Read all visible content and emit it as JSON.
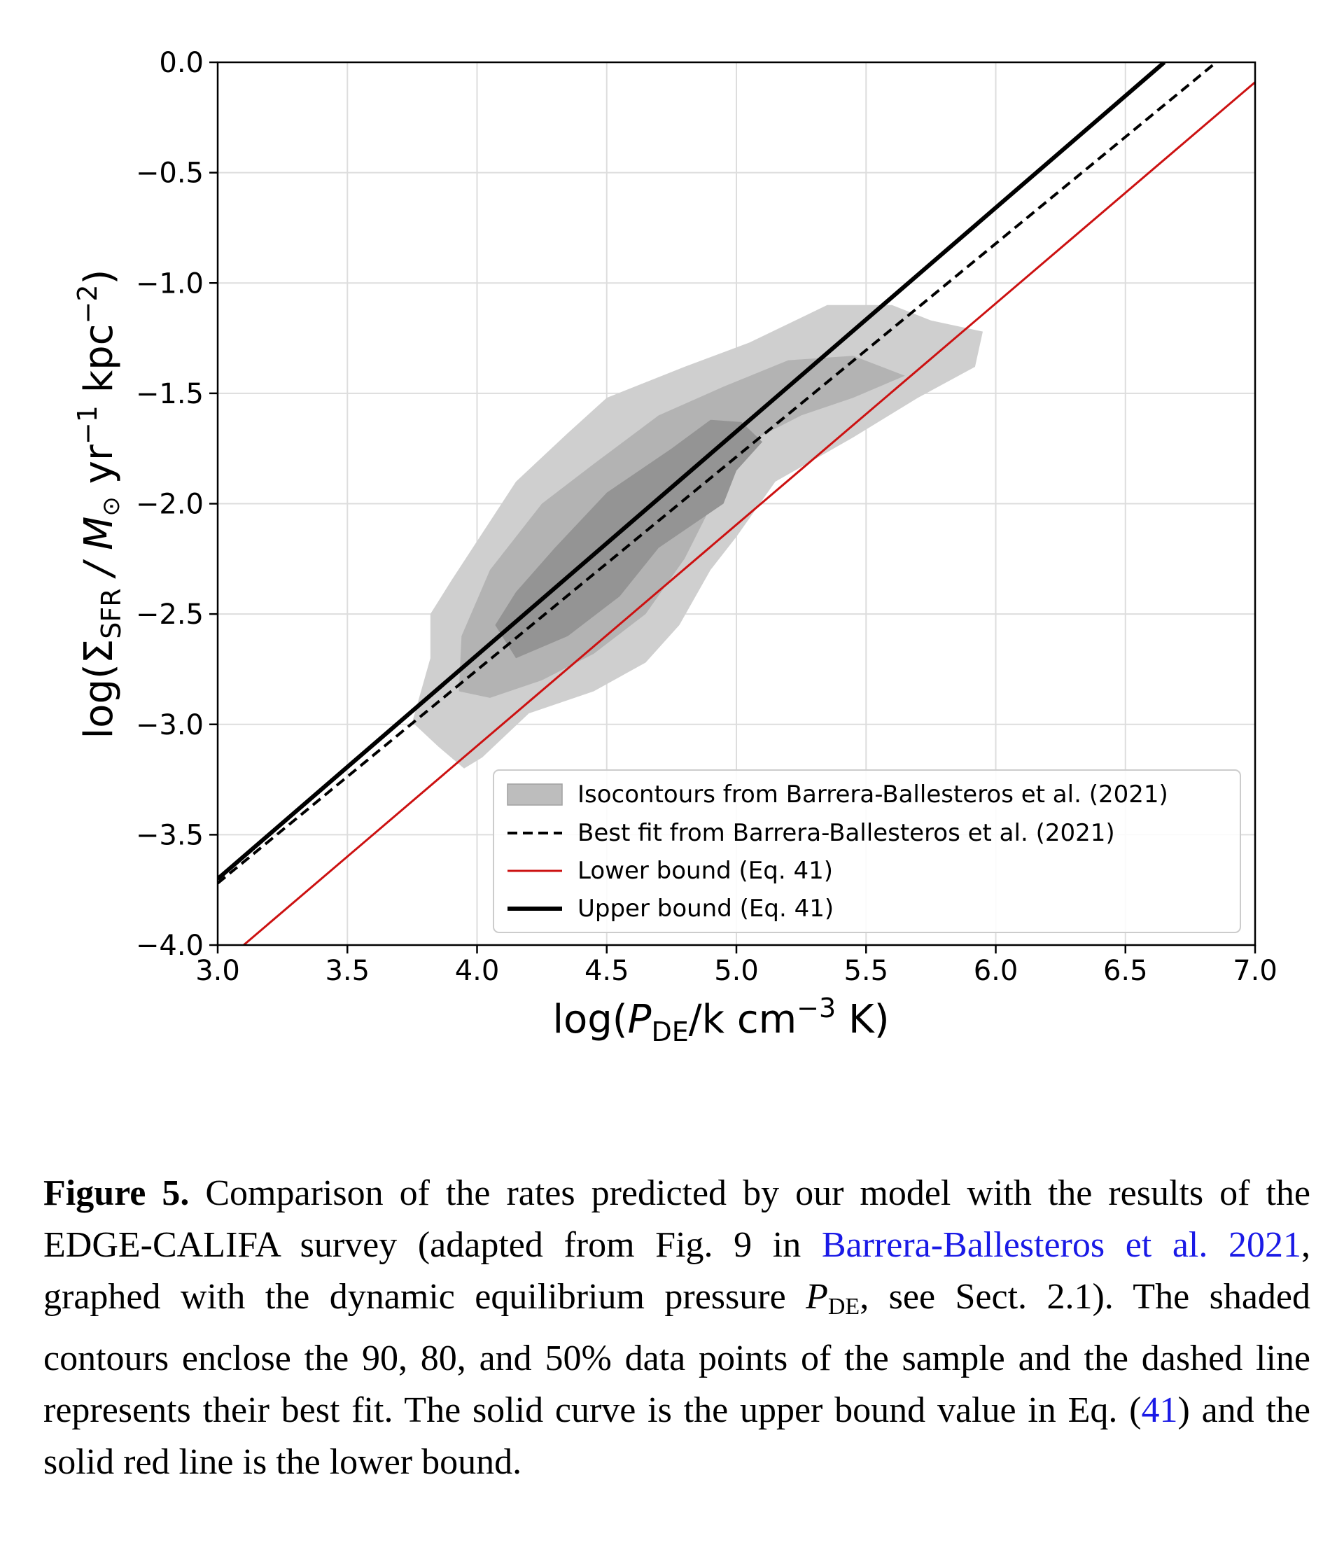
{
  "chart_data": {
    "type": "line",
    "xlabel": {
      "main": "log(",
      "var": "P",
      "sub": "DE",
      "rest": "/k cm",
      "sup": "−3",
      "end": " K)"
    },
    "ylabel": {
      "main": "log(Σ",
      "sub": "SFR",
      "rest": " / M",
      "sun": "⊙",
      "rest2": " yr",
      "sup1": "−1",
      "rest3": " kpc",
      "sup2": "−2",
      "end": ")"
    },
    "xlim": [
      3.0,
      7.0
    ],
    "ylim": [
      -4.0,
      0.0
    ],
    "x_ticks": [
      3.0,
      3.5,
      4.0,
      4.5,
      5.0,
      5.5,
      6.0,
      6.5,
      7.0
    ],
    "x_tick_labels": [
      "3.0",
      "3.5",
      "4.0",
      "4.5",
      "5.0",
      "5.5",
      "6.0",
      "6.5",
      "7.0"
    ],
    "y_ticks": [
      0.0,
      -0.5,
      -1.0,
      -1.5,
      -2.0,
      -2.5,
      -3.0,
      -3.5,
      -4.0
    ],
    "y_tick_labels": [
      "0.0",
      "−0.5",
      "−1.0",
      "−1.5",
      "−2.0",
      "−2.5",
      "−3.0",
      "−3.5",
      "−4.0"
    ],
    "grid": true,
    "legend_position": "lower-right",
    "series": [
      {
        "name": "Isocontours from Barrera-Ballesteros et al. (2021)",
        "kind": "contour",
        "color": "#bdbdbd",
        "levels": [
          {
            "percent": 90,
            "color": "#cfcfcf",
            "polygon": [
              [
                3.75,
                -2.99
              ],
              [
                3.82,
                -2.7
              ],
              [
                3.82,
                -2.5
              ],
              [
                3.9,
                -2.35
              ],
              [
                4.05,
                -2.08
              ],
              [
                4.15,
                -1.9
              ],
              [
                4.35,
                -1.68
              ],
              [
                4.5,
                -1.52
              ],
              [
                4.8,
                -1.38
              ],
              [
                5.05,
                -1.27
              ],
              [
                5.35,
                -1.1
              ],
              [
                5.6,
                -1.1
              ],
              [
                5.75,
                -1.17
              ],
              [
                5.95,
                -1.22
              ],
              [
                5.92,
                -1.38
              ],
              [
                5.7,
                -1.52
              ],
              [
                5.45,
                -1.7
              ],
              [
                5.3,
                -1.8
              ],
              [
                5.15,
                -1.9
              ],
              [
                5.0,
                -2.15
              ],
              [
                4.9,
                -2.3
              ],
              [
                4.78,
                -2.55
              ],
              [
                4.65,
                -2.72
              ],
              [
                4.45,
                -2.85
              ],
              [
                4.2,
                -2.95
              ],
              [
                4.02,
                -3.15
              ],
              [
                3.95,
                -3.2
              ],
              [
                3.85,
                -3.1
              ]
            ]
          },
          {
            "percent": 80,
            "color": "#b3b3b3",
            "polygon": [
              [
                3.93,
                -2.85
              ],
              [
                3.94,
                -2.6
              ],
              [
                4.05,
                -2.3
              ],
              [
                4.25,
                -2.0
              ],
              [
                4.45,
                -1.82
              ],
              [
                4.7,
                -1.6
              ],
              [
                4.95,
                -1.47
              ],
              [
                5.2,
                -1.35
              ],
              [
                5.45,
                -1.33
              ],
              [
                5.65,
                -1.42
              ],
              [
                5.45,
                -1.52
              ],
              [
                5.25,
                -1.6
              ],
              [
                5.05,
                -1.72
              ],
              [
                4.95,
                -1.9
              ],
              [
                4.8,
                -2.25
              ],
              [
                4.65,
                -2.5
              ],
              [
                4.45,
                -2.68
              ],
              [
                4.25,
                -2.8
              ],
              [
                4.05,
                -2.88
              ]
            ]
          },
          {
            "percent": 50,
            "color": "#949494",
            "polygon": [
              [
                4.07,
                -2.55
              ],
              [
                4.15,
                -2.4
              ],
              [
                4.3,
                -2.2
              ],
              [
                4.5,
                -1.95
              ],
              [
                4.75,
                -1.75
              ],
              [
                4.9,
                -1.62
              ],
              [
                5.02,
                -1.63
              ],
              [
                5.1,
                -1.72
              ],
              [
                5.0,
                -1.85
              ],
              [
                4.95,
                -2.0
              ],
              [
                4.7,
                -2.2
              ],
              [
                4.55,
                -2.42
              ],
              [
                4.35,
                -2.6
              ],
              [
                4.15,
                -2.7
              ]
            ]
          }
        ]
      },
      {
        "name": "Best fit from Barrera-Ballesteros et al. (2021)",
        "kind": "line",
        "style": "dashed",
        "color": "#000000",
        "x": [
          3.0,
          6.85
        ],
        "y": [
          -3.72,
          0.0
        ]
      },
      {
        "name": "Lower bound (Eq. 41)",
        "kind": "line",
        "style": "solid",
        "color": "#cc1111",
        "x": [
          3.1,
          7.0
        ],
        "y": [
          -4.0,
          -0.09
        ]
      },
      {
        "name": "Upper bound (Eq. 41)",
        "kind": "line",
        "style": "solid-thick",
        "color": "#000000",
        "x": [
          3.0,
          6.65
        ],
        "y": [
          -3.7,
          0.0
        ]
      }
    ]
  },
  "caption": {
    "figure_label": "Figure 5.",
    "part1": " Comparison of the rates predicted by our model with the results of the EDGE-CALIFA survey (adapted from Fig. 9 in ",
    "ref1": "Barrera-Ballesteros et al. 2021",
    "part2": ", graphed with the dynamic equilibrium pressure ",
    "pvar": "P",
    "psub": "DE",
    "part3": ", see Sect. 2.1). The shaded contours enclose the 90, 80, and 50% data points of the sample and the dashed line represents their best fit. The solid curve is the upper bound value in Eq. (",
    "ref2": "41",
    "part4": ") and the solid red line is the lower bound."
  }
}
